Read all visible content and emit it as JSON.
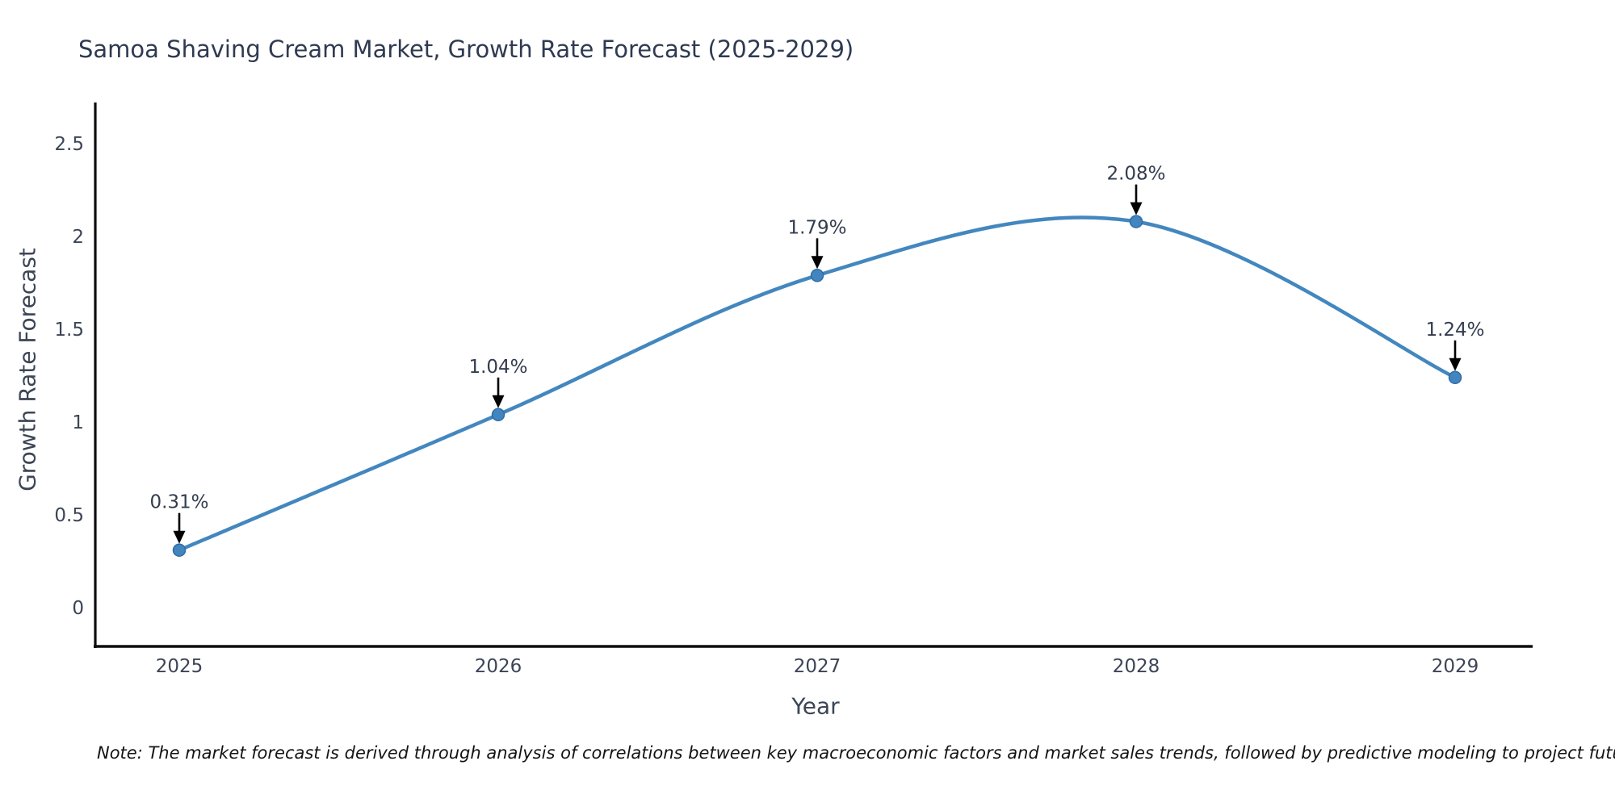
{
  "chart_data": {
    "type": "line",
    "line_shape": "spline",
    "title": "Samoa Shaving Cream Market, Growth Rate Forecast (2025-2029)",
    "xlabel": "Year",
    "ylabel": "Growth Rate Forecast",
    "categories": [
      "2025",
      "2026",
      "2027",
      "2028",
      "2029"
    ],
    "values": [
      0.31,
      1.04,
      1.79,
      2.08,
      1.24
    ],
    "point_labels": [
      "0.31%",
      "1.04%",
      "1.79%",
      "2.08%",
      "1.24%"
    ],
    "ytick_values": [
      0,
      0.5,
      1,
      1.5,
      2,
      2.5
    ],
    "ytick_labels": [
      "0",
      "0.5",
      "1",
      "1.5",
      "2",
      "2.5"
    ],
    "ylim": [
      -0.21,
      2.72
    ],
    "grid": false,
    "legend": "none",
    "colors": {
      "line": "#4387bf",
      "marker_fill": "#4285bf",
      "marker_edge": "#2f6da6",
      "arrow": "#000000",
      "axis": "#0d0d0d",
      "title_text": "#2f3a52",
      "tick_text": "#3c4556"
    }
  },
  "note": {
    "text": "Note: The market forecast is derived through analysis of correlations between key macroeconomic factors and market sales trends, followed by predictive modeling to project future sales"
  }
}
